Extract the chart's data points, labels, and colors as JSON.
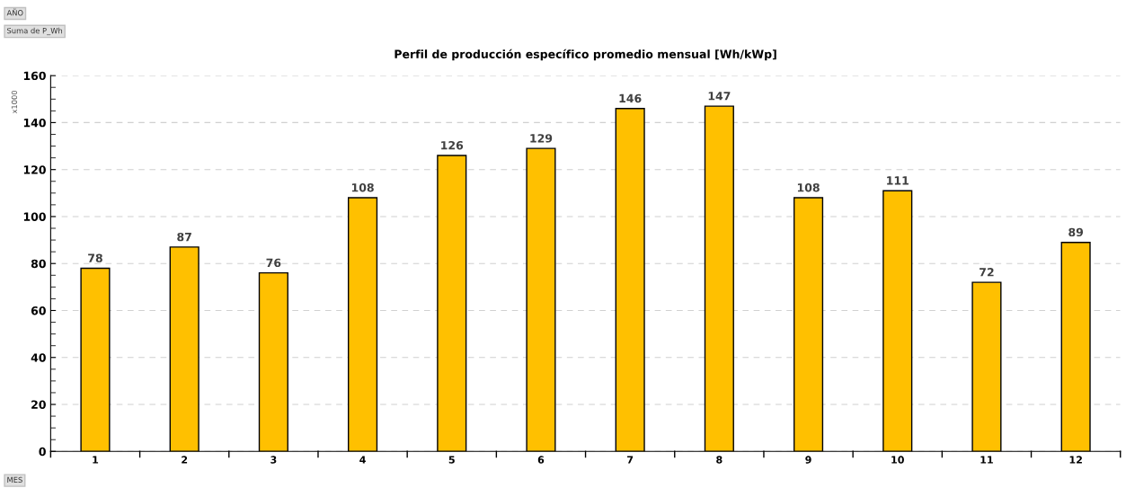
{
  "chart_data": {
    "type": "bar",
    "title": "Perfil de producción específico promedio mensual [Wh/kWp]",
    "ylabel": "x1000",
    "categories": [
      "1",
      "2",
      "3",
      "4",
      "5",
      "6",
      "7",
      "8",
      "9",
      "10",
      "11",
      "12"
    ],
    "values": [
      78,
      87,
      76,
      108,
      126,
      129,
      146,
      147,
      108,
      111,
      72,
      89
    ],
    "color": "#ffc000",
    "ylim": [
      0,
      160
    ],
    "yticks": [
      0,
      20,
      40,
      60,
      80,
      100,
      120,
      140,
      160
    ],
    "grid": "y",
    "data_labels": true,
    "annotations": [
      "AÑO",
      "Suma de P_Wh",
      "MES"
    ]
  }
}
